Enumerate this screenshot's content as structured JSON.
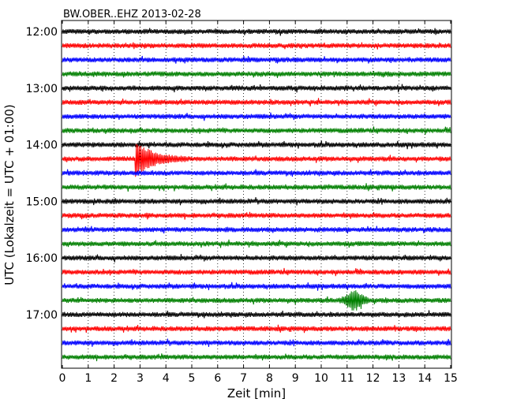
{
  "chart_data": {
    "type": "line",
    "title": "BW.OBER..EHZ 2013-02-28",
    "xlabel": "Zeit  [min]",
    "ylabel": "UTC (Lokalzeit = UTC + 01:00)",
    "xlim": [
      0,
      15
    ],
    "x_ticks": [
      0,
      1,
      2,
      3,
      4,
      5,
      6,
      7,
      8,
      9,
      10,
      11,
      12,
      13,
      14,
      15
    ],
    "y_tick_labels": [
      "12:00",
      "13:00",
      "14:00",
      "15:00",
      "16:00",
      "17:00"
    ],
    "grid": "vertical dotted",
    "trace_interval_minutes": 15,
    "traces_start": "12:00",
    "trace_colors": [
      "#000000",
      "#ff0000",
      "#0000ff",
      "#008000"
    ],
    "series": [
      {
        "start": "12:00"
      },
      {
        "start": "12:15"
      },
      {
        "start": "12:30"
      },
      {
        "start": "12:45"
      },
      {
        "start": "13:00"
      },
      {
        "start": "13:15"
      },
      {
        "start": "13:30"
      },
      {
        "start": "13:45"
      },
      {
        "start": "14:00"
      },
      {
        "start": "14:15"
      },
      {
        "start": "14:30"
      },
      {
        "start": "14:45"
      },
      {
        "start": "15:00"
      },
      {
        "start": "15:15"
      },
      {
        "start": "15:30"
      },
      {
        "start": "15:45"
      },
      {
        "start": "16:00"
      },
      {
        "start": "16:15"
      },
      {
        "start": "16:30"
      },
      {
        "start": "16:45"
      },
      {
        "start": "17:00"
      },
      {
        "start": "17:15"
      },
      {
        "start": "17:30"
      },
      {
        "start": "17:45"
      }
    ],
    "events": [
      {
        "trace_start": "14:15",
        "x_start": 2.8,
        "x_end": 4.9,
        "shape": "earthquake"
      },
      {
        "trace_start": "16:45",
        "x_start": 10.6,
        "x_end": 12.5,
        "shape": "spindle"
      }
    ]
  }
}
